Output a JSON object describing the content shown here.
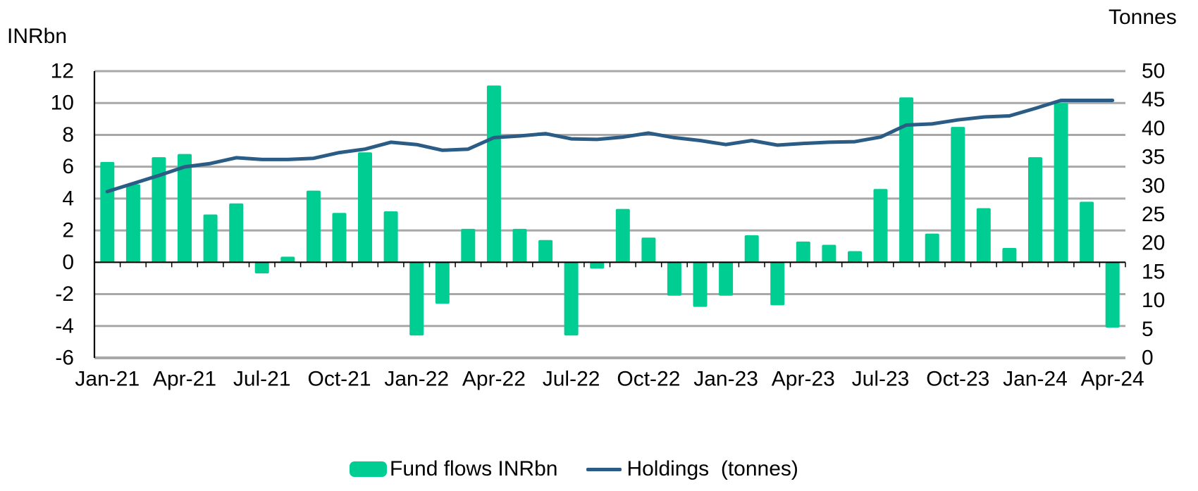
{
  "axes": {
    "left": {
      "title": "INRbn",
      "tick_labels": [
        "12",
        "10",
        "8",
        "6",
        "4",
        "2",
        "0",
        "-2",
        "-4",
        "-6"
      ]
    },
    "right": {
      "title": "Tonnes",
      "tick_labels": [
        "50",
        "45",
        "40",
        "35",
        "30",
        "25",
        "20",
        "15",
        "10",
        "5",
        "0"
      ]
    }
  },
  "legend": [
    {
      "label": "Fund flows INRbn",
      "series": "bars",
      "color": "#00CD92"
    },
    {
      "label": "Holdings  (tonnes)",
      "series": "line",
      "color": "#2A5C85"
    }
  ],
  "chart_data": {
    "type": "combo_bar_line",
    "title": "",
    "categories": [
      "Jan-21",
      "Feb-21",
      "Mar-21",
      "Apr-21",
      "May-21",
      "Jun-21",
      "Jul-21",
      "Aug-21",
      "Sep-21",
      "Oct-21",
      "Nov-21",
      "Dec-21",
      "Jan-22",
      "Feb-22",
      "Mar-22",
      "Apr-22",
      "May-22",
      "Jun-22",
      "Jul-22",
      "Aug-22",
      "Sep-22",
      "Oct-22",
      "Nov-22",
      "Dec-22",
      "Jan-23",
      "Feb-23",
      "Mar-23",
      "Apr-23",
      "May-23",
      "Jun-23",
      "Jul-23",
      "Aug-23",
      "Sep-23",
      "Oct-23",
      "Nov-23",
      "Dec-23",
      "Jan-24",
      "Feb-24",
      "Mar-24",
      "Apr-24"
    ],
    "x_tick_labels_shown": [
      "Jan-21",
      "Apr-21",
      "Jul-21",
      "Oct-21",
      "Jan-22",
      "Apr-22",
      "Jul-22",
      "Oct-22",
      "Jan-23",
      "Apr-23",
      "Jul-23",
      "Oct-23",
      "Jan-24",
      "Apr-24"
    ],
    "x_label_every_n": 3,
    "series": [
      {
        "name": "Fund flows INRbn",
        "type": "bar",
        "axis": "left",
        "unit": "INRbn",
        "color": "#00CD92",
        "values": [
          6.3,
          4.9,
          6.6,
          6.8,
          3.0,
          3.7,
          -0.7,
          0.35,
          4.5,
          3.1,
          6.9,
          3.2,
          -4.6,
          -2.6,
          2.1,
          11.1,
          2.1,
          1.4,
          -4.6,
          -0.4,
          3.35,
          1.55,
          -2.1,
          -2.8,
          -2.1,
          1.7,
          -2.7,
          1.3,
          1.1,
          0.7,
          4.6,
          10.35,
          1.8,
          8.5,
          3.4,
          0.9,
          6.6,
          10.0,
          3.8,
          -4.1
        ]
      },
      {
        "name": "Holdings (tonnes)",
        "type": "line",
        "axis": "right",
        "unit": "tonnes",
        "color": "#2A5C85",
        "values": [
          29.0,
          30.4,
          31.8,
          33.3,
          33.9,
          34.9,
          34.6,
          34.6,
          34.8,
          35.8,
          36.4,
          37.6,
          37.2,
          36.2,
          36.4,
          38.4,
          38.7,
          39.1,
          38.2,
          38.1,
          38.5,
          39.2,
          38.4,
          37.9,
          37.2,
          37.9,
          37.1,
          37.4,
          37.6,
          37.7,
          38.5,
          40.6,
          40.8,
          41.5,
          42.0,
          42.2,
          43.5,
          44.9,
          44.9,
          44.9
        ]
      }
    ],
    "left_axis": {
      "label": "INRbn",
      "min": -6,
      "max": 12,
      "tick_step": 2
    },
    "right_axis": {
      "label": "Tonnes",
      "min": 0,
      "max": 50,
      "tick_step": 5
    },
    "grid": {
      "horizontal": true,
      "color": "#A8A8A8"
    },
    "axis_color": "#000000",
    "legend_position": "bottom"
  }
}
